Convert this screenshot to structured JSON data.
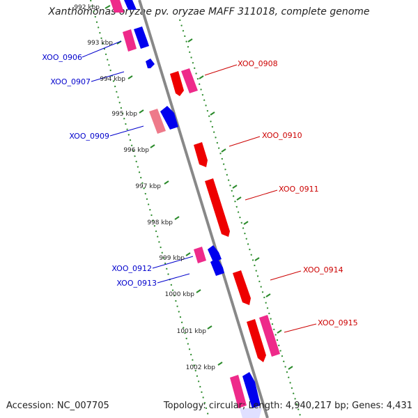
{
  "header": {
    "title": "Xanthomonas oryzae pv. oryzae MAFF 311018, complete genome"
  },
  "footer": {
    "accession": "Accession: NC_007705",
    "summary": "Topology: circular; Length: 4,940,217 bp; Genes: 4,431"
  },
  "ticks": [
    "992 kbp",
    "993 kbp",
    "994 kbp",
    "995 kbp",
    "996 kbp",
    "997 kbp",
    "998 kbp",
    "999 kbp",
    "1000 kbp",
    "1001 kbp",
    "1002 kbp"
  ],
  "genes": {
    "left": [
      "XOO_0906",
      "XOO_0907",
      "XOO_0909",
      "XOO_0912",
      "XOO_0913"
    ],
    "right": [
      "XOO_0908",
      "XOO_0910",
      "XOO_0911",
      "XOO_0914",
      "XOO_0915"
    ]
  },
  "colors": {
    "backbone": "#888888",
    "dotted_track": "#2a8a2a",
    "forward_gene": "#0000ee",
    "reverse_gene": "#ee0000",
    "alt_gene": "#ee2a8a",
    "label_blue": "#0000cc",
    "label_red": "#cc0000"
  }
}
